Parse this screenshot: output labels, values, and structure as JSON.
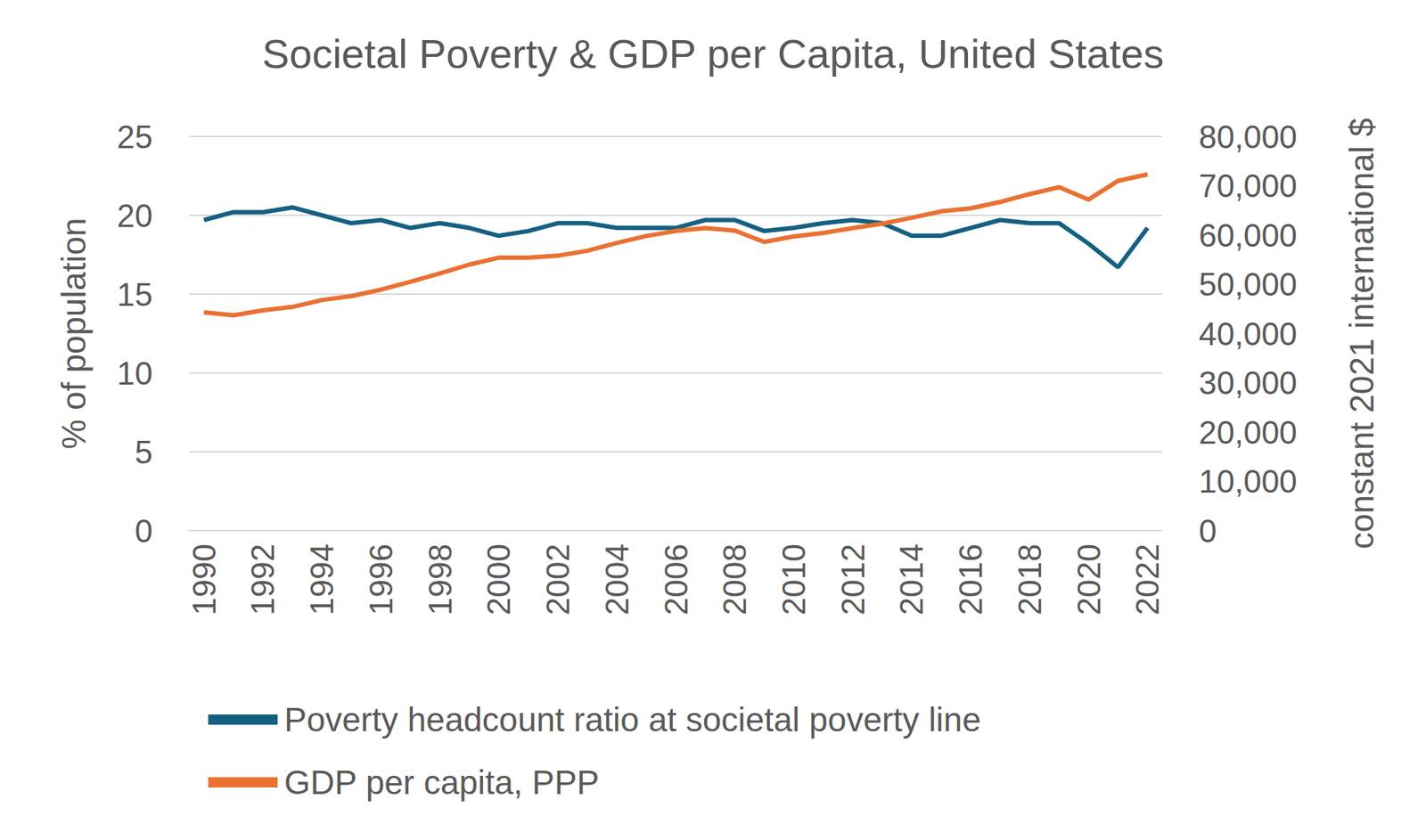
{
  "chart_data": {
    "type": "line",
    "title": "Societal Poverty & GDP per Capita, United States",
    "ylabel": "% of population",
    "y2label": "constant 2021 international $",
    "categories": [
      "1990",
      null,
      "1992",
      null,
      "1994",
      null,
      "1996",
      null,
      "1998",
      null,
      "2000",
      null,
      "2002",
      null,
      "2004",
      null,
      "2006",
      null,
      "2008",
      null,
      "2010",
      null,
      "2012",
      null,
      "2014",
      null,
      "2016",
      null,
      "2018",
      null,
      "2020",
      null,
      "2022"
    ],
    "series": [
      {
        "name": "Poverty headcount ratio at societal poverty line",
        "color": "#156082",
        "values": [
          19.7,
          20.2,
          20.2,
          20.5,
          20.0,
          19.5,
          19.7,
          19.2,
          19.5,
          19.2,
          18.7,
          19.0,
          19.5,
          19.5,
          19.2,
          19.2,
          19.2,
          19.7,
          19.7,
          19.0,
          19.2,
          19.5,
          19.7,
          19.5,
          18.7,
          18.7,
          19.2,
          19.7,
          19.5,
          19.5,
          18.2,
          16.7,
          19.2
        ]
      },
      {
        "name": "GDP per capita, PPP",
        "color": "#e97132",
        "axis": "y2",
        "values": [
          44300,
          43700,
          44700,
          45400,
          46800,
          47600,
          48900,
          50500,
          52200,
          54000,
          55400,
          55400,
          55800,
          56800,
          58400,
          59800,
          60800,
          61400,
          60900,
          58600,
          59700,
          60400,
          61400,
          62300,
          63500,
          64800,
          65400,
          66700,
          68300,
          69700,
          67200,
          71000,
          72300
        ]
      }
    ],
    "ylim": [
      0,
      25
    ],
    "yticks": [
      0,
      5,
      10,
      15,
      20,
      25
    ],
    "y2lim": [
      0,
      80000
    ],
    "y2ticks": [
      0,
      {
        "value": 10000,
        "label": "10,000"
      },
      {
        "value": 20000,
        "label": "20,000"
      },
      {
        "value": 30000,
        "label": "30,000"
      },
      {
        "value": 40000,
        "label": "40,000"
      },
      {
        "value": 50000,
        "label": "50,000"
      },
      {
        "value": 60000,
        "label": "60,000"
      },
      {
        "value": 70000,
        "label": "70,000"
      },
      {
        "value": 80000,
        "label": "80,000"
      }
    ],
    "grid": true,
    "legend": "bottom"
  }
}
